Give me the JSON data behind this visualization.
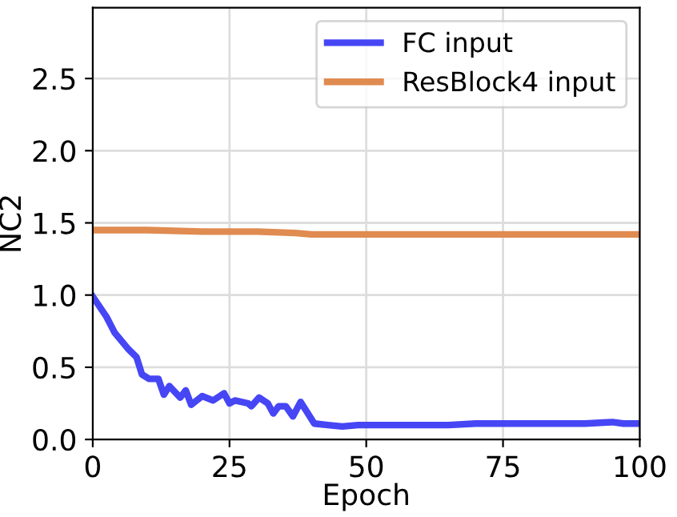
{
  "chart_data": {
    "type": "line",
    "xlabel": "Epoch",
    "ylabel": "NC2",
    "xlim": [
      0,
      100
    ],
    "ylim": [
      0,
      2.99
    ],
    "xticks": [
      0,
      25,
      50,
      75,
      100
    ],
    "yticks": [
      {
        "value": 0,
        "label": "0.0"
      },
      0.5,
      {
        "value": 1,
        "label": "1.0"
      },
      1.5,
      {
        "value": 2,
        "label": "2.0"
      },
      2.5
    ],
    "grid": true,
    "legend": "top right",
    "marker": "none",
    "line_style": "solid",
    "series": [
      {
        "name": "FC input",
        "color": "#4646f5",
        "x": [
          0,
          2.5,
          4,
          6.4,
          8,
          9,
          10.3,
          12,
          13,
          14,
          16,
          17,
          18,
          20,
          22,
          24,
          25,
          26,
          28.4,
          29,
          30.4,
          32,
          33,
          34,
          35.3,
          36.6,
          38,
          40.5,
          43,
          45.6,
          48.5,
          55,
          60,
          65,
          70,
          75,
          80,
          85,
          90,
          95,
          97,
          100
        ],
        "values": [
          0.99,
          0.85,
          0.74,
          0.63,
          0.57,
          0.45,
          0.42,
          0.42,
          0.31,
          0.37,
          0.29,
          0.34,
          0.24,
          0.3,
          0.27,
          0.32,
          0.25,
          0.27,
          0.25,
          0.23,
          0.29,
          0.25,
          0.18,
          0.23,
          0.23,
          0.16,
          0.26,
          0.11,
          0.1,
          0.09,
          0.1,
          0.1,
          0.1,
          0.1,
          0.11,
          0.11,
          0.11,
          0.11,
          0.11,
          0.12,
          0.11,
          0.11
        ]
      },
      {
        "name": "ResBlock4 input",
        "color": "#e08b50",
        "x": [
          0,
          10,
          20,
          30,
          37,
          40,
          50,
          60,
          70,
          80,
          90,
          100
        ],
        "values": [
          1.45,
          1.45,
          1.44,
          1.44,
          1.43,
          1.42,
          1.42,
          1.42,
          1.42,
          1.42,
          1.42,
          1.42
        ]
      }
    ]
  }
}
